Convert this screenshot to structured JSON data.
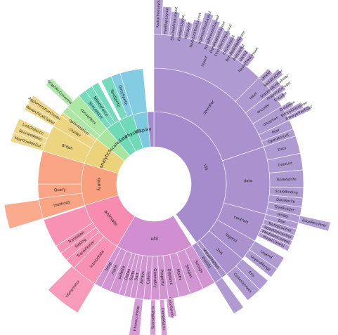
{
  "chart_data": {
    "type": "sunburst",
    "colors": {
      "vis": "#a58ccc",
      "flex": "#cf8fd0",
      "animate": "#f78cb0",
      "util": "#f78cb0",
      "query": "#f9a07f",
      "data": "#ecd27a",
      "analytics": "#ecd27a",
      "scale": "#a8e6a0",
      "physics": "#6fd9b8",
      "display": "#7cc9e0"
    },
    "segments": [
      {
        "label": "vis",
        "start": 0.0,
        "end": 0.4,
        "depth": 1,
        "color": "vis"
      },
      {
        "label": "operator",
        "start": 0.0,
        "end": 0.198,
        "depth": 2,
        "color": "vis"
      },
      {
        "label": "layout",
        "start": 0.0,
        "end": 0.124,
        "depth": 3,
        "color": "vis"
      },
      {
        "label": "RadialTreeLayout",
        "start": 0.0,
        "end": 0.008,
        "depth": 4,
        "color": "vis",
        "ext": 62
      },
      {
        "label": "TreeMapLayout",
        "start": 0.008,
        "end": 0.016,
        "depth": 4,
        "color": "vis",
        "ext": 40
      },
      {
        "label": "StackedAreaLayout",
        "start": 0.016,
        "end": 0.024,
        "depth": 4,
        "color": "vis",
        "ext": 34
      },
      {
        "label": "RandomLayout",
        "start": 0.024,
        "end": 0.031,
        "depth": 4,
        "color": "vis",
        "ext": 26
      },
      {
        "label": "PieLayout",
        "start": 0.031,
        "end": 0.038,
        "depth": 4,
        "color": "vis",
        "ext": 22
      },
      {
        "label": "NodeLinkTreeLayout",
        "start": 0.038,
        "end": 0.046,
        "depth": 4,
        "color": "vis",
        "ext": 28
      },
      {
        "label": "IndentedTreeLayout",
        "start": 0.046,
        "end": 0.054,
        "depth": 4,
        "color": "vis",
        "ext": 42
      },
      {
        "label": "ForceDirectedLayout",
        "start": 0.054,
        "end": 0.062,
        "depth": 4,
        "color": "vis",
        "ext": 36
      },
      {
        "label": "DendrogramLayout",
        "start": 0.062,
        "end": 0.068,
        "depth": 4,
        "color": "vis",
        "ext": 30
      },
      {
        "label": "CirclePackingLayout",
        "start": 0.068,
        "end": 0.075,
        "depth": 4,
        "color": "vis",
        "ext": 28
      },
      {
        "label": "CircleLayout",
        "start": 0.075,
        "end": 0.082,
        "depth": 4,
        "color": "vis",
        "ext": 24
      },
      {
        "label": "BundledEdgeRouter",
        "start": 0.082,
        "end": 0.088,
        "depth": 4,
        "color": "vis",
        "ext": 30
      },
      {
        "label": "AxisLayout",
        "start": 0.088,
        "end": 0.094,
        "depth": 4,
        "color": "vis",
        "ext": 20
      },
      {
        "label": "Layout",
        "start": 0.094,
        "end": 0.1,
        "depth": 4,
        "color": "vis",
        "ext": 18
      },
      {
        "label": "RadialTreeLayout",
        "start": 0.1,
        "end": 0.107,
        "depth": 4,
        "color": "vis",
        "ext": 18
      },
      {
        "label": "label",
        "start": 0.124,
        "end": 0.145,
        "depth": 3,
        "color": "vis"
      },
      {
        "label": "Labeler",
        "start": 0.124,
        "end": 0.131,
        "depth": 4,
        "color": "vis",
        "ext": 18
      },
      {
        "label": "RadialLabeler",
        "start": 0.131,
        "end": 0.138,
        "depth": 4,
        "color": "vis",
        "ext": 28
      },
      {
        "label": "StackedAreaLabeler",
        "start": 0.138,
        "end": 0.145,
        "depth": 4,
        "color": "vis",
        "ext": 16
      },
      {
        "label": "encoder",
        "start": 0.145,
        "end": 0.163,
        "depth": 3,
        "color": "vis"
      },
      {
        "label": "PropertyEncoder",
        "start": 0.145,
        "end": 0.151,
        "depth": 4,
        "color": "vis",
        "ext": 18
      },
      {
        "label": "Encoder",
        "start": 0.151,
        "end": 0.157,
        "depth": 4,
        "color": "vis",
        "ext": 12
      },
      {
        "label": "distortion",
        "start": 0.163,
        "end": 0.18,
        "depth": 3,
        "color": "vis"
      },
      {
        "label": "Distortion",
        "start": 0.163,
        "end": 0.169,
        "depth": 4,
        "color": "vis",
        "ext": 14
      },
      {
        "label": "BifocalDistortion",
        "start": 0.169,
        "end": 0.175,
        "depth": 4,
        "color": "vis",
        "ext": 26
      },
      {
        "label": "FisheyeTreeFilter",
        "start": 0.175,
        "end": 0.18,
        "depth": 4,
        "color": "vis",
        "ext": 34
      },
      {
        "label": "filter",
        "start": 0.18,
        "end": 0.19,
        "depth": 3,
        "color": "vis"
      },
      {
        "label": "OperatorList",
        "start": 0.19,
        "end": 0.198,
        "depth": 3,
        "color": "vis"
      },
      {
        "label": "data",
        "start": 0.198,
        "end": 0.292,
        "depth": 2,
        "color": "vis"
      },
      {
        "label": "Data",
        "start": 0.198,
        "end": 0.217,
        "depth": 3,
        "color": "vis"
      },
      {
        "label": "DataList",
        "start": 0.217,
        "end": 0.235,
        "depth": 3,
        "color": "vis"
      },
      {
        "label": "NodeSprite",
        "start": 0.235,
        "end": 0.254,
        "depth": 3,
        "color": "vis"
      },
      {
        "label": "ScaleBinding",
        "start": 0.254,
        "end": 0.265,
        "depth": 3,
        "color": "vis"
      },
      {
        "label": "DataSprite",
        "start": 0.265,
        "end": 0.275,
        "depth": 3,
        "color": "vis"
      },
      {
        "label": "TreeBuilder",
        "start": 0.275,
        "end": 0.284,
        "depth": 3,
        "color": "vis"
      },
      {
        "label": "render",
        "start": 0.284,
        "end": 0.292,
        "depth": 3,
        "color": "vis"
      },
      {
        "label": "EdgeRenderer",
        "start": 0.284,
        "end": 0.292,
        "depth": 4,
        "color": "vis",
        "ext": 44
      },
      {
        "label": "controls",
        "start": 0.292,
        "end": 0.332,
        "depth": 2,
        "color": "vis"
      },
      {
        "label": "Tree",
        "start": 0.292,
        "end": 0.299,
        "depth": 3,
        "color": "vis"
      },
      {
        "label": "TooltipControl",
        "start": 0.299,
        "end": 0.306,
        "depth": 3,
        "color": "vis"
      },
      {
        "label": "SelectionControl",
        "start": 0.306,
        "end": 0.312,
        "depth": 3,
        "color": "vis"
      },
      {
        "label": "PanZoomControl",
        "start": 0.312,
        "end": 0.318,
        "depth": 3,
        "color": "vis"
      },
      {
        "label": "HoverControl",
        "start": 0.318,
        "end": 0.324,
        "depth": 3,
        "color": "vis"
      },
      {
        "label": "legend",
        "start": 0.332,
        "end": 0.362,
        "depth": 2,
        "color": "vis"
      },
      {
        "label": "Legend",
        "start": 0.332,
        "end": 0.346,
        "depth": 3,
        "color": "vis"
      },
      {
        "label": "LegendRange",
        "start": 0.346,
        "end": 0.357,
        "depth": 3,
        "color": "vis"
      },
      {
        "label": "axis",
        "start": 0.362,
        "end": 0.392,
        "depth": 2,
        "color": "vis"
      },
      {
        "label": "Axis",
        "start": 0.362,
        "end": 0.375,
        "depth": 3,
        "color": "vis"
      },
      {
        "label": "CartesianAxes",
        "start": 0.375,
        "end": 0.392,
        "depth": 3,
        "color": "vis"
      },
      {
        "label": "Visualization",
        "start": 0.392,
        "end": 0.4,
        "depth": 2,
        "color": "vis"
      },
      {
        "label": "events",
        "start": 0.4,
        "end": 0.412,
        "depth": 2,
        "color": "vis"
      },
      {
        "label": "",
        "start": 0.4,
        "end": 0.412,
        "depth": 3,
        "color": "vis",
        "ext": 52
      },
      {
        "label": "util",
        "start": 0.412,
        "end": 0.585,
        "depth": 1,
        "color": "flex"
      },
      {
        "label": "Strings",
        "start": 0.412,
        "end": 0.43,
        "depth": 2,
        "color": "flex"
      },
      {
        "label": "Shapes",
        "start": 0.43,
        "end": 0.449,
        "depth": 2,
        "color": "flex"
      },
      {
        "label": "Maths",
        "start": 0.449,
        "end": 0.465,
        "depth": 2,
        "color": "flex"
      },
      {
        "label": "Displays",
        "start": 0.465,
        "end": 0.48,
        "depth": 2,
        "color": "flex"
      },
      {
        "label": "Property",
        "start": 0.48,
        "end": 0.492,
        "depth": 2,
        "color": "flex"
      },
      {
        "label": "Geometry",
        "start": 0.492,
        "end": 0.504,
        "depth": 2,
        "color": "flex"
      },
      {
        "label": "Colors",
        "start": 0.504,
        "end": 0.514,
        "depth": 2,
        "color": "flex"
      },
      {
        "label": "Arrays",
        "start": 0.514,
        "end": 0.525,
        "depth": 2,
        "color": "flex"
      },
      {
        "label": "Sort",
        "start": 0.525,
        "end": 0.533,
        "depth": 2,
        "color": "flex"
      },
      {
        "label": "Stats",
        "start": 0.533,
        "end": 0.541,
        "depth": 2,
        "color": "flex"
      },
      {
        "label": "Dates",
        "start": 0.541,
        "end": 0.549,
        "depth": 2,
        "color": "flex"
      },
      {
        "label": "palette",
        "start": 0.549,
        "end": 0.562,
        "depth": 2,
        "color": "flex"
      },
      {
        "label": "math",
        "start": 0.562,
        "end": 0.575,
        "depth": 2,
        "color": "flex"
      },
      {
        "label": "heap",
        "start": 0.575,
        "end": 0.585,
        "depth": 2,
        "color": "flex"
      },
      {
        "label": "ColorPalette",
        "start": 0.473,
        "end": 0.483,
        "depth": 3,
        "color": "flex",
        "ext": 26
      },
      {
        "label": "DenseMatrix",
        "start": 0.486,
        "end": 0.492,
        "depth": 3,
        "color": "flex",
        "ext": 56
      },
      {
        "label": "SparseMatrix",
        "start": 0.498,
        "end": 0.504,
        "depth": 3,
        "color": "flex",
        "ext": 50
      },
      {
        "label": "FibonacciHeap",
        "start": 0.515,
        "end": 0.526,
        "depth": 3,
        "color": "flex",
        "ext": 56
      },
      {
        "label": "animate",
        "start": 0.585,
        "end": 0.702,
        "depth": 1,
        "color": "animate"
      },
      {
        "label": "interpolate",
        "start": 0.585,
        "end": 0.621,
        "depth": 2,
        "color": "animate"
      },
      {
        "label": "Interpolator",
        "start": 0.585,
        "end": 0.625,
        "depth": 3,
        "color": "animate",
        "ext": 48
      },
      {
        "label": "Transitioner",
        "start": 0.621,
        "end": 0.636,
        "depth": 2,
        "color": "animate"
      },
      {
        "label": "Easing",
        "start": 0.636,
        "end": 0.648,
        "depth": 2,
        "color": "animate"
      },
      {
        "label": "Transition",
        "start": 0.648,
        "end": 0.66,
        "depth": 2,
        "color": "animate"
      },
      {
        "label": "",
        "start": 0.66,
        "end": 0.7,
        "depth": 2,
        "color": "animate"
      },
      {
        "label": "query",
        "start": 0.702,
        "end": 0.796,
        "depth": 1,
        "color": "query"
      },
      {
        "label": "methods",
        "start": 0.702,
        "end": 0.73,
        "depth": 2,
        "color": "query"
      },
      {
        "label": "",
        "start": 0.702,
        "end": 0.728,
        "depth": 3,
        "color": "query",
        "ext": 50
      },
      {
        "label": "Query",
        "start": 0.73,
        "end": 0.75,
        "depth": 2,
        "color": "query"
      },
      {
        "label": "",
        "start": 0.75,
        "end": 0.796,
        "depth": 2,
        "color": "query"
      },
      {
        "label": "analytics",
        "start": 0.796,
        "end": 0.856,
        "depth": 1,
        "color": "data"
      },
      {
        "label": "graph",
        "start": 0.796,
        "end": 0.833,
        "depth": 2,
        "color": "data"
      },
      {
        "label": "MaxFlowMinCut",
        "start": 0.796,
        "end": 0.806,
        "depth": 3,
        "color": "data"
      },
      {
        "label": "ShortestPaths",
        "start": 0.806,
        "end": 0.814,
        "depth": 3,
        "color": "data"
      },
      {
        "label": "LinkDistance",
        "start": 0.814,
        "end": 0.822,
        "depth": 3,
        "color": "data"
      },
      {
        "label": "cluster",
        "start": 0.833,
        "end": 0.851,
        "depth": 2,
        "color": "data"
      },
      {
        "label": "HierarchicalCluster",
        "start": 0.833,
        "end": 0.841,
        "depth": 3,
        "color": "data"
      },
      {
        "label": "AgglomerativeCluster",
        "start": 0.841,
        "end": 0.851,
        "depth": 3,
        "color": "data"
      },
      {
        "label": "optimization",
        "start": 0.851,
        "end": 0.856,
        "depth": 2,
        "color": "data"
      },
      {
        "label": "scale",
        "start": 0.856,
        "end": 0.888,
        "depth": 1,
        "color": "scale"
      },
      {
        "label": "",
        "start": 0.856,
        "end": 0.866,
        "depth": 2,
        "color": "scale"
      },
      {
        "label": "converters",
        "start": 0.866,
        "end": 0.888,
        "depth": 2,
        "color": "scale"
      },
      {
        "label": "GraphMLConverter",
        "start": 0.868,
        "end": 0.878,
        "depth": 3,
        "color": "scale",
        "ext": 44
      },
      {
        "label": "data",
        "start": 0.888,
        "end": 0.92,
        "depth": 1,
        "color": "physics"
      },
      {
        "label": "Simulation",
        "start": 0.888,
        "end": 0.899,
        "depth": 2,
        "color": "physics"
      },
      {
        "label": "NBodyForce",
        "start": 0.899,
        "end": 0.91,
        "depth": 2,
        "color": "physics"
      },
      {
        "label": "",
        "start": 0.91,
        "end": 0.92,
        "depth": 2,
        "color": "physics"
      },
      {
        "label": "physics",
        "start": 0.92,
        "end": 0.953,
        "depth": 1,
        "color": "physics"
      },
      {
        "label": "TextSprite",
        "start": 0.925,
        "end": 0.94,
        "depth": 2,
        "color": "physics"
      },
      {
        "label": "DirtySprite",
        "start": 0.94,
        "end": 0.953,
        "depth": 2,
        "color": "display"
      },
      {
        "label": "display",
        "start": 0.953,
        "end": 0.985,
        "depth": 1,
        "color": "display"
      },
      {
        "label": "",
        "start": 0.953,
        "end": 0.985,
        "depth": 2,
        "color": "display"
      },
      {
        "label": "",
        "start": 0.985,
        "end": 1.0,
        "depth": 1,
        "color": "vis"
      }
    ],
    "title": "",
    "xlabel": "",
    "ylabel": ""
  }
}
